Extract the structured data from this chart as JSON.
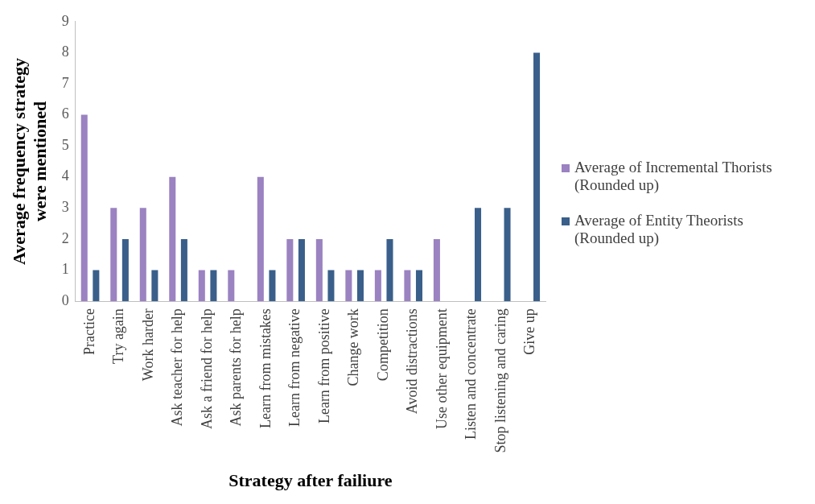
{
  "chart_data": {
    "type": "bar",
    "xlabel": "Strategy after failiure",
    "ylabel": "Average frequency strategy were mentioned",
    "categories": [
      "Practice",
      "Try again",
      "Work harder",
      "Ask teacher for help",
      "Ask a friend for help",
      "Ask parents for help",
      "Learn from mistakes",
      "Learn from negative",
      "Learn from positive",
      "Change work",
      "Competition",
      "Avoid distractions",
      "Use other equipment",
      "Listen and concentrate",
      "Stop listening and caring",
      "Give up"
    ],
    "series": [
      {
        "name": "Average of Incremental Thorists (Rounded up)",
        "color": "#9b82c1",
        "values": [
          6,
          3,
          3,
          4,
          1,
          1,
          4,
          2,
          2,
          1,
          1,
          1,
          2,
          0,
          0,
          0
        ]
      },
      {
        "name": "Average of Entity Theorists (Rounded up)",
        "color": "#3a5f8a",
        "values": [
          1,
          2,
          1,
          2,
          1,
          0,
          1,
          2,
          1,
          1,
          2,
          1,
          0,
          3,
          3,
          8
        ]
      }
    ],
    "ylim": [
      0,
      9
    ],
    "yticks": [
      0,
      1,
      2,
      3,
      4,
      5,
      6,
      7,
      8,
      9
    ],
    "grid": false,
    "legend": "right"
  }
}
